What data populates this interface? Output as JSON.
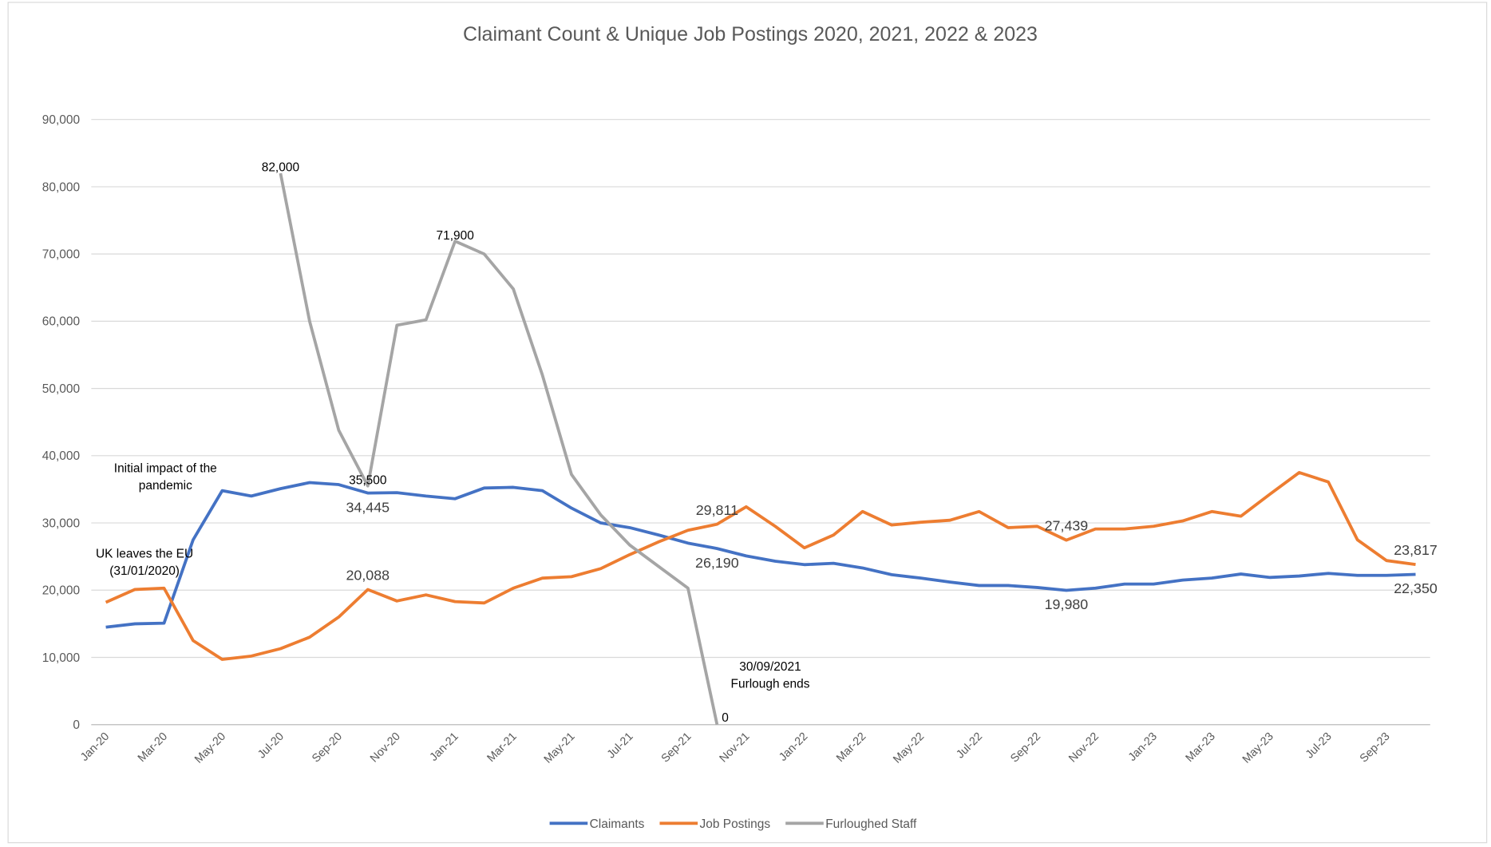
{
  "chart_data": {
    "type": "line",
    "title": "Claimant Count & Unique Job Postings 2020, 2021, 2022 & 2023",
    "categories": [
      "Jan-20",
      null,
      "Mar-20",
      null,
      "May-20",
      null,
      "Jul-20",
      null,
      "Sep-20",
      null,
      "Nov-20",
      null,
      "Jan-21",
      null,
      "Mar-21",
      null,
      "May-21",
      null,
      "Jul-21",
      null,
      "Sep-21",
      null,
      "Nov-21",
      null,
      "Jan-22",
      null,
      "Mar-22",
      null,
      "May-22",
      null,
      "Jul-22",
      null,
      "Sep-22",
      null,
      "Nov-22",
      null,
      "Jan-23",
      null,
      "Mar-23",
      null,
      "May-23",
      null,
      "Jul-23",
      null,
      "Sep-23",
      null
    ],
    "ylim": [
      0,
      90000
    ],
    "yticks": [
      0,
      {
        "value": 10000,
        "label": "10,000"
      },
      {
        "value": 20000,
        "label": "20,000"
      },
      {
        "value": 30000,
        "label": "30,000"
      },
      {
        "value": 40000,
        "label": "40,000"
      },
      {
        "value": 50000,
        "label": "50,000"
      },
      {
        "value": 60000,
        "label": "60,000"
      },
      {
        "value": 70000,
        "label": "70,000"
      },
      {
        "value": 80000,
        "label": "80,000"
      },
      {
        "value": 90000,
        "label": "90,000"
      }
    ],
    "grid": true,
    "legend": "bottom",
    "series": [
      {
        "name": "Claimants",
        "color": "#4472c4",
        "values": [
          14500,
          15000,
          15100,
          27500,
          34800,
          34000,
          35100,
          36000,
          35700,
          34445,
          34500,
          34000,
          33600,
          35200,
          35300,
          34800,
          32200,
          30000,
          29300,
          28200,
          27000,
          26190,
          25100,
          24300,
          23800,
          24000,
          23300,
          22300,
          21800,
          21200,
          20700,
          20700,
          20400,
          19980,
          20300,
          20900,
          20900,
          21500,
          21800,
          22400,
          21900,
          22100,
          22500,
          22200,
          22200,
          22350
        ],
        "value_labels": [
          null,
          null,
          null,
          null,
          null,
          null,
          null,
          null,
          null,
          "34,445",
          null,
          null,
          null,
          null,
          null,
          null,
          null,
          null,
          null,
          null,
          null,
          "26,190",
          null,
          null,
          null,
          null,
          null,
          null,
          null,
          null,
          null,
          null,
          null,
          "19,980",
          null,
          null,
          null,
          null,
          null,
          null,
          null,
          null,
          null,
          null,
          null,
          "22,350"
        ]
      },
      {
        "name": "Job Postings",
        "color": "#ed7d31",
        "values": [
          18200,
          20100,
          20300,
          12500,
          9700,
          10200,
          11300,
          13000,
          16000,
          20088,
          18400,
          19300,
          18300,
          18100,
          20300,
          21800,
          22000,
          23200,
          25300,
          27200,
          28900,
          29811,
          32400,
          29500,
          26300,
          28200,
          31700,
          29700,
          30100,
          30400,
          31700,
          29300,
          29500,
          27439,
          29100,
          29100,
          29500,
          30300,
          31700,
          31000,
          34300,
          37500,
          36100,
          27500,
          24400,
          23817
        ],
        "value_labels": [
          null,
          null,
          null,
          null,
          null,
          null,
          null,
          null,
          null,
          "20,088",
          null,
          null,
          null,
          null,
          null,
          null,
          null,
          null,
          null,
          null,
          null,
          "29,811",
          null,
          null,
          null,
          null,
          null,
          null,
          null,
          null,
          null,
          null,
          null,
          "27,439",
          null,
          null,
          null,
          null,
          null,
          null,
          null,
          null,
          null,
          null,
          null,
          "23,817"
        ]
      },
      {
        "name": "Furloughed Staff",
        "color": "#a5a5a5",
        "values": [
          null,
          null,
          null,
          null,
          null,
          null,
          82000,
          60000,
          43800,
          35500,
          59400,
          60200,
          71900,
          70000,
          64800,
          52000,
          37200,
          31200,
          26700,
          23500,
          20300,
          0,
          null,
          null,
          null,
          null,
          null,
          null,
          null,
          null,
          null,
          null,
          null,
          null,
          null,
          null,
          null,
          null,
          null,
          null,
          null,
          null,
          null,
          null,
          null,
          null
        ],
        "value_labels": [
          null,
          null,
          null,
          null,
          null,
          null,
          "82,000",
          null,
          null,
          "35,500",
          null,
          null,
          "71,900",
          null,
          null,
          null,
          null,
          null,
          null,
          null,
          null,
          "0",
          null,
          null,
          null,
          null,
          null,
          null,
          null,
          null,
          null,
          null,
          null,
          null,
          null,
          null,
          null,
          null,
          null,
          null,
          null,
          null,
          null,
          null,
          null,
          null
        ]
      }
    ],
    "annotations": [
      {
        "lines": [
          "Initial impact of the",
          "pandemic"
        ]
      },
      {
        "lines": [
          "UK leaves the EU",
          "(31/01/2020)"
        ]
      },
      {
        "lines": [
          "30/09/2021",
          "Furlough ends"
        ]
      }
    ]
  }
}
